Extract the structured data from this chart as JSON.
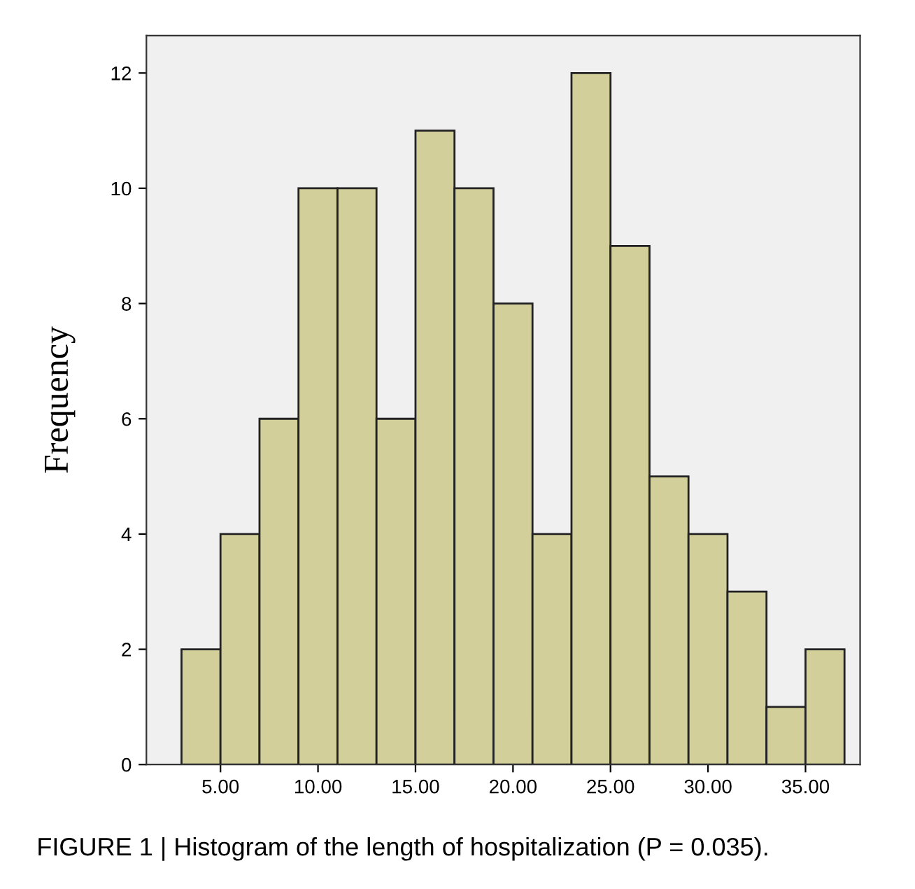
{
  "chart_data": {
    "type": "histogram",
    "ylabel": "Frequency",
    "bins": [
      3,
      5,
      7,
      9,
      11,
      13,
      15,
      17,
      19,
      21,
      23,
      25,
      27,
      29,
      31,
      33,
      35,
      37
    ],
    "values": [
      2,
      4,
      6,
      10,
      10,
      6,
      11,
      10,
      8,
      4,
      12,
      9,
      5,
      4,
      3,
      1,
      2
    ],
    "color": "#d3cf9a",
    "xlim": [
      1.2,
      37.8
    ],
    "xticks": [
      {
        "value": 5,
        "label": "5.00"
      },
      {
        "value": 10,
        "label": "10.00"
      },
      {
        "value": 15,
        "label": "15.00"
      },
      {
        "value": 20,
        "label": "20.00"
      },
      {
        "value": 25,
        "label": "25.00"
      },
      {
        "value": 30,
        "label": "30.00"
      },
      {
        "value": 35,
        "label": "35.00"
      }
    ],
    "ylim": [
      0,
      12.65
    ],
    "yticks": [
      0,
      2,
      4,
      6,
      8,
      10,
      12
    ],
    "grid": false,
    "annotations": [
      "FIGURE 1 | Histogram of the length of hospitalization (P = 0.035)."
    ]
  }
}
